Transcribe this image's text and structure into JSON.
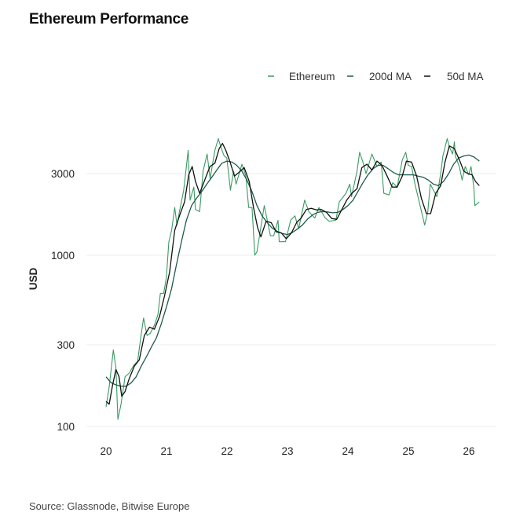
{
  "chart_data": {
    "type": "line",
    "title": "Ethereum Performance",
    "xlabel": "",
    "ylabel": "USD",
    "yscale": "log",
    "ylim": [
      100,
      5200
    ],
    "yticks": [
      100,
      300,
      1000,
      3000
    ],
    "ytick_labels": [
      "100",
      "300",
      "1000",
      "3000"
    ],
    "xticks": [
      "2020-01-01",
      "2021-01-01",
      "2022-01-01",
      "2023-01-01",
      "2024-01-01",
      "2025-01-01",
      "2026-01-01"
    ],
    "xtick_labels": [
      "20",
      "21",
      "22",
      "23",
      "24",
      "25",
      "26"
    ],
    "grid": true,
    "legend_position": "top-right",
    "source": "Source: Glassnode, Bitwise Europe",
    "series": [
      {
        "name": "Ethereum",
        "color": "#3a9a62",
        "points": [
          [
            "2020-01-01",
            130
          ],
          [
            "2020-01-20",
            170
          ],
          [
            "2020-02-14",
            280
          ],
          [
            "2020-03-01",
            220
          ],
          [
            "2020-03-13",
            110
          ],
          [
            "2020-04-01",
            135
          ],
          [
            "2020-04-25",
            195
          ],
          [
            "2020-05-20",
            205
          ],
          [
            "2020-06-20",
            230
          ],
          [
            "2020-07-10",
            240
          ],
          [
            "2020-07-31",
            340
          ],
          [
            "2020-08-15",
            430
          ],
          [
            "2020-09-05",
            340
          ],
          [
            "2020-09-25",
            350
          ],
          [
            "2020-10-20",
            390
          ],
          [
            "2020-11-10",
            450
          ],
          [
            "2020-11-25",
            600
          ],
          [
            "2020-12-15",
            600
          ],
          [
            "2020-12-31",
            740
          ],
          [
            "2021-01-15",
            1200
          ],
          [
            "2021-02-01",
            1400
          ],
          [
            "2021-02-20",
            1900
          ],
          [
            "2021-03-05",
            1500
          ],
          [
            "2021-03-20",
            1800
          ],
          [
            "2021-04-15",
            2400
          ],
          [
            "2021-05-12",
            4100
          ],
          [
            "2021-05-23",
            2100
          ],
          [
            "2021-06-15",
            2500
          ],
          [
            "2021-06-25",
            1850
          ],
          [
            "2021-07-20",
            1800
          ],
          [
            "2021-08-10",
            3100
          ],
          [
            "2021-09-03",
            3900
          ],
          [
            "2021-09-21",
            2800
          ],
          [
            "2021-10-20",
            4100
          ],
          [
            "2021-11-10",
            4800
          ],
          [
            "2021-11-28",
            4200
          ],
          [
            "2021-12-15",
            3800
          ],
          [
            "2021-12-31",
            3700
          ],
          [
            "2022-01-22",
            2400
          ],
          [
            "2022-02-10",
            3100
          ],
          [
            "2022-02-25",
            2600
          ],
          [
            "2022-04-01",
            3400
          ],
          [
            "2022-04-25",
            2900
          ],
          [
            "2022-05-12",
            1900
          ],
          [
            "2022-06-01",
            1900
          ],
          [
            "2022-06-18",
            1000
          ],
          [
            "2022-07-01",
            1050
          ],
          [
            "2022-08-14",
            1950
          ],
          [
            "2022-09-20",
            1300
          ],
          [
            "2022-10-10",
            1300
          ],
          [
            "2022-11-05",
            1600
          ],
          [
            "2022-11-12",
            1200
          ],
          [
            "2022-12-20",
            1200
          ],
          [
            "2023-01-20",
            1600
          ],
          [
            "2023-02-15",
            1700
          ],
          [
            "2023-03-10",
            1430
          ],
          [
            "2023-04-15",
            2100
          ],
          [
            "2023-05-10",
            1800
          ],
          [
            "2023-06-15",
            1650
          ],
          [
            "2023-07-10",
            1900
          ],
          [
            "2023-08-17",
            1650
          ],
          [
            "2023-09-10",
            1580
          ],
          [
            "2023-10-20",
            1600
          ],
          [
            "2023-11-10",
            2050
          ],
          [
            "2023-12-20",
            2300
          ],
          [
            "2024-01-12",
            2600
          ],
          [
            "2024-01-23",
            2200
          ],
          [
            "2024-02-25",
            3100
          ],
          [
            "2024-03-12",
            4000
          ],
          [
            "2024-04-01",
            3500
          ],
          [
            "2024-04-20",
            3000
          ],
          [
            "2024-05-25",
            3900
          ],
          [
            "2024-06-25",
            3300
          ],
          [
            "2024-07-20",
            3500
          ],
          [
            "2024-08-05",
            2300
          ],
          [
            "2024-09-06",
            2250
          ],
          [
            "2024-09-28",
            2650
          ],
          [
            "2024-10-25",
            2500
          ],
          [
            "2024-11-25",
            3600
          ],
          [
            "2024-12-16",
            4000
          ],
          [
            "2024-12-31",
            3350
          ],
          [
            "2025-01-20",
            3300
          ],
          [
            "2025-02-10",
            2600
          ],
          [
            "2025-03-10",
            2000
          ],
          [
            "2025-04-09",
            1500
          ],
          [
            "2025-04-28",
            1800
          ],
          [
            "2025-05-13",
            2600
          ],
          [
            "2025-06-22",
            2200
          ],
          [
            "2025-07-15",
            3000
          ],
          [
            "2025-07-28",
            3800
          ],
          [
            "2025-08-23",
            4800
          ],
          [
            "2025-09-05",
            4300
          ],
          [
            "2025-09-25",
            3900
          ],
          [
            "2025-10-06",
            4600
          ],
          [
            "2025-10-11",
            3800
          ],
          [
            "2025-11-04",
            3300
          ],
          [
            "2025-11-21",
            2750
          ],
          [
            "2025-12-10",
            3300
          ],
          [
            "2025-12-31",
            2950
          ],
          [
            "2026-01-14",
            3300
          ],
          [
            "2026-01-31",
            2500
          ],
          [
            "2026-02-06",
            1950
          ],
          [
            "2026-02-20",
            2000
          ],
          [
            "2026-03-05",
            2050
          ]
        ]
      },
      {
        "name": "200d MA",
        "color": "#1f5a4a",
        "points": [
          [
            "2020-01-01",
            195
          ],
          [
            "2020-02-01",
            180
          ],
          [
            "2020-03-01",
            175
          ],
          [
            "2020-04-01",
            172
          ],
          [
            "2020-05-01",
            172
          ],
          [
            "2020-06-01",
            180
          ],
          [
            "2020-07-01",
            195
          ],
          [
            "2020-08-01",
            225
          ],
          [
            "2020-09-01",
            255
          ],
          [
            "2020-10-01",
            290
          ],
          [
            "2020-11-01",
            330
          ],
          [
            "2020-12-01",
            400
          ],
          [
            "2021-01-01",
            500
          ],
          [
            "2021-02-01",
            640
          ],
          [
            "2021-03-01",
            870
          ],
          [
            "2021-04-01",
            1200
          ],
          [
            "2021-05-01",
            1600
          ],
          [
            "2021-06-01",
            1950
          ],
          [
            "2021-07-01",
            2150
          ],
          [
            "2021-08-01",
            2350
          ],
          [
            "2021-09-01",
            2600
          ],
          [
            "2021-10-01",
            2850
          ],
          [
            "2021-11-01",
            3150
          ],
          [
            "2021-12-01",
            3450
          ],
          [
            "2022-01-01",
            3550
          ],
          [
            "2022-02-01",
            3500
          ],
          [
            "2022-03-01",
            3350
          ],
          [
            "2022-04-01",
            3100
          ],
          [
            "2022-05-01",
            2750
          ],
          [
            "2022-06-01",
            2350
          ],
          [
            "2022-07-01",
            1950
          ],
          [
            "2022-08-01",
            1700
          ],
          [
            "2022-09-01",
            1550
          ],
          [
            "2022-10-01",
            1440
          ],
          [
            "2022-11-01",
            1380
          ],
          [
            "2022-12-01",
            1340
          ],
          [
            "2023-01-01",
            1320
          ],
          [
            "2023-02-01",
            1360
          ],
          [
            "2023-03-01",
            1420
          ],
          [
            "2023-04-01",
            1500
          ],
          [
            "2023-05-01",
            1620
          ],
          [
            "2023-06-01",
            1720
          ],
          [
            "2023-07-01",
            1780
          ],
          [
            "2023-08-01",
            1800
          ],
          [
            "2023-09-01",
            1790
          ],
          [
            "2023-10-01",
            1770
          ],
          [
            "2023-11-01",
            1780
          ],
          [
            "2023-12-01",
            1850
          ],
          [
            "2024-01-01",
            1950
          ],
          [
            "2024-02-01",
            2100
          ],
          [
            "2024-03-01",
            2350
          ],
          [
            "2024-04-01",
            2650
          ],
          [
            "2024-05-01",
            2950
          ],
          [
            "2024-06-01",
            3200
          ],
          [
            "2024-07-01",
            3350
          ],
          [
            "2024-08-01",
            3350
          ],
          [
            "2024-09-01",
            3200
          ],
          [
            "2024-10-01",
            3050
          ],
          [
            "2024-11-01",
            2950
          ],
          [
            "2024-12-01",
            2950
          ],
          [
            "2025-01-01",
            2950
          ],
          [
            "2025-02-01",
            2950
          ],
          [
            "2025-03-01",
            2900
          ],
          [
            "2025-04-01",
            2850
          ],
          [
            "2025-05-01",
            2750
          ],
          [
            "2025-06-01",
            2600
          ],
          [
            "2025-07-01",
            2550
          ],
          [
            "2025-08-01",
            2700
          ],
          [
            "2025-09-01",
            3000
          ],
          [
            "2025-10-01",
            3400
          ],
          [
            "2025-11-01",
            3700
          ],
          [
            "2025-12-01",
            3800
          ],
          [
            "2026-01-01",
            3850
          ],
          [
            "2026-02-01",
            3750
          ],
          [
            "2026-03-05",
            3550
          ]
        ]
      },
      {
        "name": "50d MA",
        "color": "#111111",
        "points": [
          [
            "2020-01-01",
            140
          ],
          [
            "2020-01-20",
            135
          ],
          [
            "2020-02-10",
            175
          ],
          [
            "2020-03-01",
            215
          ],
          [
            "2020-03-20",
            195
          ],
          [
            "2020-04-05",
            150
          ],
          [
            "2020-04-25",
            160
          ],
          [
            "2020-05-20",
            190
          ],
          [
            "2020-06-20",
            225
          ],
          [
            "2020-07-20",
            245
          ],
          [
            "2020-08-20",
            340
          ],
          [
            "2020-09-20",
            380
          ],
          [
            "2020-10-20",
            370
          ],
          [
            "2020-11-20",
            440
          ],
          [
            "2020-12-20",
            580
          ],
          [
            "2021-01-20",
            800
          ],
          [
            "2021-02-20",
            1400
          ],
          [
            "2021-03-20",
            1700
          ],
          [
            "2021-04-20",
            2050
          ],
          [
            "2021-05-15",
            2950
          ],
          [
            "2021-06-05",
            3300
          ],
          [
            "2021-06-25",
            2700
          ],
          [
            "2021-07-20",
            2300
          ],
          [
            "2021-08-20",
            2750
          ],
          [
            "2021-09-20",
            3300
          ],
          [
            "2021-10-20",
            3450
          ],
          [
            "2021-11-15",
            4200
          ],
          [
            "2021-12-05",
            4500
          ],
          [
            "2021-12-25",
            4100
          ],
          [
            "2022-01-20",
            3500
          ],
          [
            "2022-02-15",
            2900
          ],
          [
            "2022-03-15",
            3050
          ],
          [
            "2022-04-15",
            3250
          ],
          [
            "2022-05-15",
            2700
          ],
          [
            "2022-06-10",
            1900
          ],
          [
            "2022-07-05",
            1450
          ],
          [
            "2022-07-25",
            1280
          ],
          [
            "2022-08-25",
            1580
          ],
          [
            "2022-09-25",
            1550
          ],
          [
            "2022-10-25",
            1370
          ],
          [
            "2022-11-25",
            1350
          ],
          [
            "2022-12-25",
            1250
          ],
          [
            "2023-01-25",
            1350
          ],
          [
            "2023-02-25",
            1550
          ],
          [
            "2023-03-25",
            1650
          ],
          [
            "2023-04-25",
            1850
          ],
          [
            "2023-05-25",
            1880
          ],
          [
            "2023-06-25",
            1840
          ],
          [
            "2023-07-25",
            1850
          ],
          [
            "2023-08-25",
            1780
          ],
          [
            "2023-09-25",
            1640
          ],
          [
            "2023-10-25",
            1620
          ],
          [
            "2023-11-25",
            1850
          ],
          [
            "2023-12-25",
            2100
          ],
          [
            "2024-01-25",
            2300
          ],
          [
            "2024-02-25",
            2450
          ],
          [
            "2024-03-25",
            3250
          ],
          [
            "2024-04-25",
            3400
          ],
          [
            "2024-05-25",
            3150
          ],
          [
            "2024-06-25",
            3550
          ],
          [
            "2024-07-25",
            3350
          ],
          [
            "2024-08-25",
            2900
          ],
          [
            "2024-09-25",
            2500
          ],
          [
            "2024-10-25",
            2500
          ],
          [
            "2024-11-25",
            2900
          ],
          [
            "2024-12-20",
            3550
          ],
          [
            "2025-01-20",
            3500
          ],
          [
            "2025-02-20",
            2900
          ],
          [
            "2025-03-20",
            2150
          ],
          [
            "2025-04-20",
            1750
          ],
          [
            "2025-05-15",
            1750
          ],
          [
            "2025-06-15",
            2300
          ],
          [
            "2025-07-15",
            2550
          ],
          [
            "2025-08-10",
            3500
          ],
          [
            "2025-09-05",
            4350
          ],
          [
            "2025-10-05",
            4200
          ],
          [
            "2025-11-05",
            3600
          ],
          [
            "2025-12-01",
            3100
          ],
          [
            "2025-12-25",
            3000
          ],
          [
            "2026-01-20",
            2950
          ],
          [
            "2026-02-10",
            2700
          ],
          [
            "2026-03-05",
            2550
          ]
        ]
      }
    ]
  }
}
